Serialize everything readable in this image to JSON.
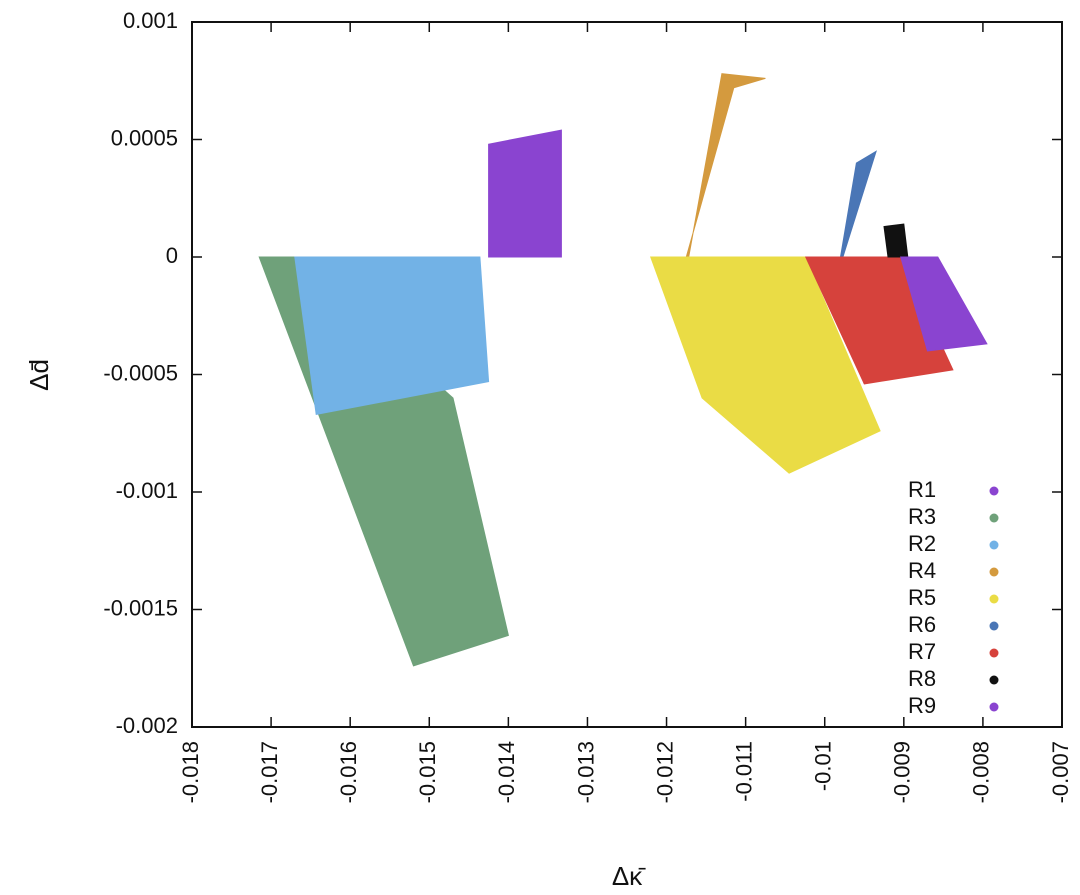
{
  "chart_data": {
    "type": "scatter",
    "title": "",
    "xlabel": "Δκ̄",
    "ylabel": "Δd̄",
    "xlim": [
      -0.018,
      -0.007
    ],
    "ylim": [
      -0.002,
      0.001
    ],
    "x_ticks": [
      "-0.018",
      "-0.017",
      "-0.016",
      "-0.015",
      "-0.014",
      "-0.013",
      "-0.012",
      "-0.011",
      "-0.01",
      "-0.009",
      "-0.008",
      "-0.007"
    ],
    "y_ticks": [
      "0.001",
      "0.0005",
      "0",
      "-0.0005",
      "-0.001",
      "-0.0015",
      "-0.002"
    ],
    "grid": false,
    "legend_position": "bottom-right",
    "series": [
      {
        "name": "R1",
        "color": "#8a44d0",
        "region": {
          "x": [
            -0.01425,
            -0.01333,
            -0.01333,
            -0.01425
          ],
          "y": [
            0.00048,
            0.00054,
            0.0,
            0.0
          ]
        }
      },
      {
        "name": "R3",
        "color": "#6fa17a",
        "region": {
          "x": [
            -0.01715,
            -0.0167,
            -0.0147,
            -0.014,
            -0.0152
          ],
          "y": [
            0.0,
            0.0,
            -0.0006,
            -0.00161,
            -0.00174
          ]
        }
      },
      {
        "name": "R2",
        "color": "#72b2e6",
        "region": {
          "x": [
            -0.0167,
            -0.01436,
            -0.01425,
            -0.01643
          ],
          "y": [
            0.0,
            0.0,
            -0.00053,
            -0.00067
          ]
        }
      },
      {
        "name": "R4",
        "color": "#d49a3e",
        "region": {
          "x": [
            -0.0122,
            -0.01175,
            -0.01115,
            -0.01075,
            -0.0113,
            -0.01172
          ],
          "y": [
            0.0,
            0.0,
            0.00072,
            0.00076,
            0.00078,
            0.0
          ]
        }
      },
      {
        "name": "R5",
        "color": "#eadc45",
        "region": {
          "x": [
            -0.0122,
            -0.01024,
            -0.0093,
            -0.01045,
            -0.01155
          ],
          "y": [
            0.0,
            0.0,
            -0.00074,
            -0.00092,
            -0.0006
          ]
        }
      },
      {
        "name": "R6",
        "color": "#4a76b6",
        "region": {
          "x": [
            -0.01024,
            -0.0098,
            -0.0096,
            -0.00935,
            -0.00977
          ],
          "y": [
            0.0,
            0.0,
            0.0004,
            0.00045,
            0.0
          ]
        }
      },
      {
        "name": "R7",
        "color": "#d6423c",
        "region": {
          "x": [
            -0.01024,
            -0.00904,
            -0.00838,
            -0.0095
          ],
          "y": [
            0.0,
            0.0,
            -0.00048,
            -0.00054
          ]
        }
      },
      {
        "name": "R8",
        "color": "#111111",
        "region": {
          "x": [
            -0.0092,
            -0.00895,
            -0.009,
            -0.00925
          ],
          "y": [
            0.0,
            0.0,
            0.00014,
            0.00013
          ]
        }
      },
      {
        "name": "R9",
        "color": "#8a44d0",
        "region": {
          "x": [
            -0.00904,
            -0.00857,
            -0.00795,
            -0.0087
          ],
          "y": [
            0.0,
            0.0,
            -0.00037,
            -0.0004
          ]
        }
      }
    ]
  }
}
